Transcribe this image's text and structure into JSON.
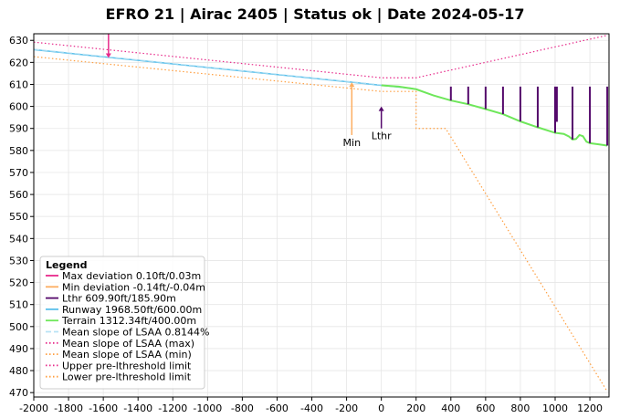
{
  "chart_data": {
    "type": "line",
    "title": "EFRO 21 | Airac 2405 | Status ok | Date 2024-05-17",
    "xlim": [
      -2000,
      1310
    ],
    "ylim": [
      468,
      633
    ],
    "xticks": [
      -2000,
      -1800,
      -1600,
      -1400,
      -1200,
      -1000,
      -800,
      -600,
      -400,
      -200,
      0,
      200,
      400,
      600,
      800,
      1000,
      1200
    ],
    "yticks": [
      470,
      480,
      490,
      500,
      510,
      520,
      530,
      540,
      550,
      560,
      570,
      580,
      590,
      600,
      610,
      620,
      630
    ],
    "grid": true,
    "legend": {
      "title": "Legend",
      "position": "lower-left",
      "entries": [
        {
          "label": "Max deviation 0.10ft/0.03m",
          "color": "#e7298a",
          "style": "solid"
        },
        {
          "label": "Min deviation -0.14ft/-0.04m",
          "color": "#fdae61",
          "style": "solid"
        },
        {
          "label": "Lthr 609.90ft/185.90m",
          "color": "#54086b",
          "style": "solid"
        },
        {
          "label": "Runway 1968.50ft/600.00m",
          "color": "#5bc0eb",
          "style": "solid"
        },
        {
          "label": "Terrain 1312.34ft/400.00m",
          "color": "#6ee75a",
          "style": "solid"
        },
        {
          "label": "Mean slope of LSAA 0.8144%",
          "color": "#b8e3f5",
          "style": "dashed"
        },
        {
          "label": "Mean slope of LSAA (max)",
          "color": "#e7298a",
          "style": "dotted"
        },
        {
          "label": "Mean slope of LSAA (min)",
          "color": "#ff9f40",
          "style": "dotted"
        },
        {
          "label": "Upper pre-lthreshold limit",
          "color": "#e7298a",
          "style": "dotted"
        },
        {
          "label": "Lower pre-lthreshold limit",
          "color": "#ff9f40",
          "style": "dotted"
        }
      ]
    },
    "annotations": [
      {
        "label": "Min",
        "x": -170,
        "arrow_from": 587,
        "arrow_to": 611,
        "color": "#fdae61"
      },
      {
        "label": "Lthr",
        "x": 0,
        "arrow_from": 590,
        "arrow_to": 600,
        "color": "#54086b"
      }
    ],
    "max_deviation_marker": {
      "x": -1570,
      "y_top": 633,
      "y_bottom": 622,
      "color": "#e7298a"
    },
    "series": [
      {
        "key": "runway",
        "color": "#5bc0eb",
        "style": "solid",
        "width": 1.5,
        "x": [
          -2000,
          0,
          180
        ],
        "y": [
          625.8,
          609.6,
          608.2
        ]
      },
      {
        "key": "mean_slope",
        "color": "#b8e3f5",
        "style": "dashed",
        "width": 1.2,
        "x": [
          -2000,
          0
        ],
        "y": [
          626.0,
          609.8
        ]
      },
      {
        "key": "upper_limit",
        "color": "#e7298a",
        "style": "dotted",
        "width": 1.2,
        "x": [
          -2000,
          0,
          200,
          1300
        ],
        "y": [
          629.2,
          613.0,
          613.0,
          632.3
        ]
      },
      {
        "key": "lower_limit",
        "color": "#ff9f40",
        "style": "dotted",
        "width": 1.2,
        "x": [
          -2000,
          0,
          200,
          200,
          370,
          1300
        ],
        "y": [
          622.6,
          606.8,
          606.8,
          590.0,
          590.0,
          470.5
        ]
      },
      {
        "key": "terrain",
        "color": "#6ee75a",
        "style": "solid",
        "width": 2,
        "x": [
          0,
          100,
          200,
          300,
          400,
          500,
          600,
          700,
          800,
          900,
          1000,
          1050,
          1080,
          1100,
          1120,
          1140,
          1160,
          1180,
          1200,
          1250,
          1300
        ],
        "y": [
          609.6,
          609.0,
          607.8,
          605.0,
          602.7,
          601.0,
          598.8,
          596.5,
          593.2,
          590.5,
          588.0,
          587.5,
          586.3,
          585.0,
          585.2,
          587.0,
          586.5,
          584.0,
          583.3,
          582.8,
          582.2
        ]
      }
    ],
    "bars": {
      "key": "lthr_obstacles",
      "color": "#54086b",
      "top": 609.0,
      "x": [
        400,
        500,
        600,
        700,
        800,
        900,
        1000,
        1010,
        1100,
        1200,
        1300
      ],
      "base": [
        602.7,
        601.0,
        598.8,
        596.5,
        593.2,
        590.5,
        588.0,
        593.0,
        585.0,
        583.3,
        582.2
      ]
    }
  }
}
